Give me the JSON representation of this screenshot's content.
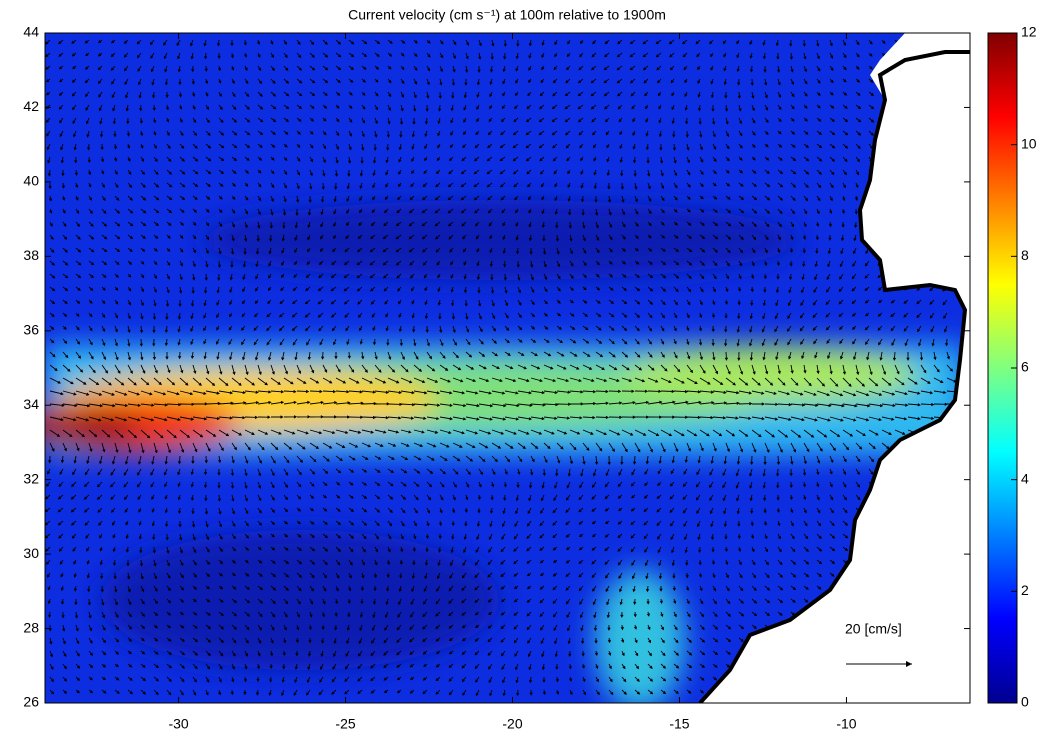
{
  "chart_data": {
    "type": "map",
    "title": "Current velocity (cm s⁻¹) at 100m relative to 1900m",
    "xlim": [
      -34,
      -6.3
    ],
    "ylim": [
      26,
      44
    ],
    "xticks": [
      -30,
      -25,
      -20,
      -15,
      -10
    ],
    "yticks": [
      26,
      28,
      30,
      32,
      34,
      36,
      38,
      40,
      42,
      44
    ],
    "colormap": "jet",
    "colorbar": {
      "lim": [
        0,
        12
      ],
      "ticks": [
        0,
        2,
        4,
        6,
        8,
        10,
        12
      ]
    },
    "scale_arrow": {
      "value": 20,
      "label": "20  [cm/s]"
    }
  }
}
